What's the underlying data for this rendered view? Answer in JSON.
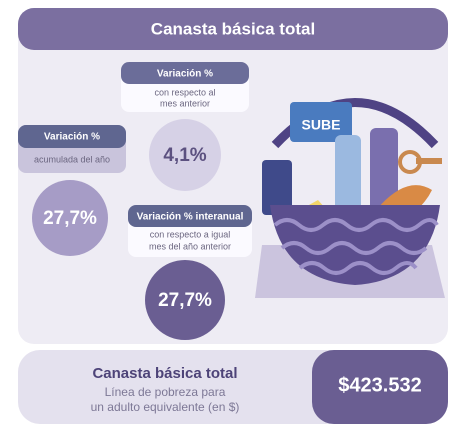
{
  "header": {
    "title": "Canasta básica total"
  },
  "cards": [
    {
      "title": "Variación %",
      "subtitle_lines": [
        "con respecto al",
        "mes anterior"
      ],
      "value": "4,1%"
    },
    {
      "title": "Variación %",
      "subtitle_lines": [
        "acumulada del año"
      ],
      "value": "27,7%"
    },
    {
      "title": "Variación % interanual",
      "subtitle_lines": [
        "con respecto a igual",
        "mes del año anterior"
      ],
      "value": "27,7%"
    }
  ],
  "footer": {
    "title": "Canasta básica total",
    "subtitle_lines": [
      "Línea de pobreza para",
      "un adulto equivalente (en $)"
    ],
    "value": "$423.532"
  },
  "basket": {
    "card_label": "SUBE"
  }
}
